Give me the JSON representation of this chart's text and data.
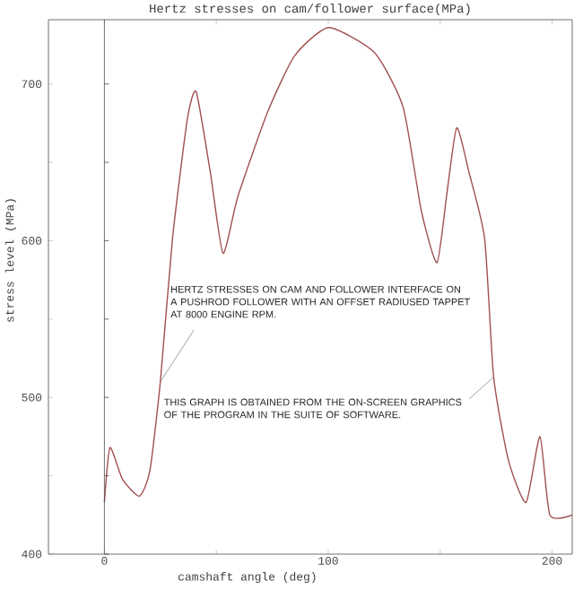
{
  "chart_data": {
    "type": "line",
    "title": "Hertz stresses on cam/follower surface(MPa)",
    "xlabel": "camshaft angle (deg)",
    "ylabel": "stress level (MPa)",
    "x": [
      0,
      2.5,
      8,
      15.6,
      20.3,
      25,
      30.4,
      37,
      41,
      47.4,
      53,
      59.6,
      72.9,
      85,
      100.2,
      120.7,
      133.5,
      141.6,
      148.6,
      153,
      157.4,
      163,
      169.9,
      173.9,
      180.5,
      188.4,
      194.6,
      199,
      209
    ],
    "series": [
      {
        "color": "#a05050",
        "values": [
          433,
          468,
          448,
          437,
          453,
          510,
          601,
          677,
          695,
          643,
          592,
          628,
          682,
          718,
          736,
          720,
          685,
          619,
          586,
          630,
          672,
          643,
          601,
          513,
          460,
          433,
          475,
          425,
          425
        ]
      }
    ],
    "xlim": [
      -25,
      209
    ],
    "ylim": [
      400,
      741
    ],
    "xticks": [
      0,
      {
        "value": 50,
        "label": null
      },
      100,
      {
        "value": 150,
        "label": null
      },
      200
    ],
    "yticks": [
      400,
      {
        "value": 450,
        "label": null
      },
      500,
      {
        "value": 550,
        "label": null
      },
      600,
      {
        "value": 650,
        "label": null
      },
      700
    ],
    "ref_lines": [
      {
        "axis": "x",
        "value": 0
      }
    ],
    "grid": false,
    "marker": "none",
    "line_style": "solid",
    "annotations": [
      {
        "text": "HERTZ STRESSES ON CAM AND FOLLOWER INTERFACE ON A PUSHROD FOLLOWER WITH AN OFFSET RADIUSED TAPPET AT 8000 ENGINE RPM.",
        "x": 25,
        "y": 510
      },
      {
        "text": "THIS GRAPH IS OBTAINED FROM THE ON-SCREEN GRAPHICS OF THE PROGRAM IN THE SUITE OF SOFTWARE.",
        "x": 173.9,
        "y": 513
      }
    ]
  }
}
